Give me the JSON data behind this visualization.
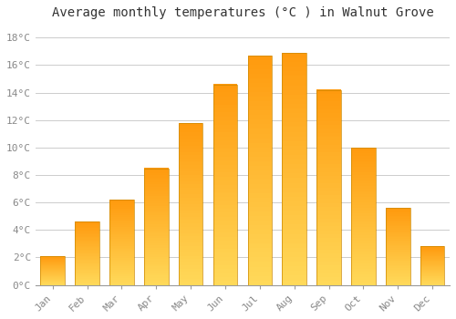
{
  "title": "Average monthly temperatures (°C ) in Walnut Grove",
  "months": [
    "Jan",
    "Feb",
    "Mar",
    "Apr",
    "May",
    "Jun",
    "Jul",
    "Aug",
    "Sep",
    "Oct",
    "Nov",
    "Dec"
  ],
  "values": [
    2.1,
    4.6,
    6.2,
    8.5,
    11.8,
    14.6,
    16.7,
    16.9,
    14.2,
    10.0,
    5.6,
    2.8
  ],
  "bar_color_main": "#FFA500",
  "bar_color_light": "#FFD070",
  "bar_edge_color": "#CC8800",
  "background_color": "#FFFFFF",
  "grid_color": "#CCCCCC",
  "ytick_labels": [
    "0°C",
    "2°C",
    "4°C",
    "6°C",
    "8°C",
    "10°C",
    "12°C",
    "14°C",
    "16°C",
    "18°C"
  ],
  "ytick_values": [
    0,
    2,
    4,
    6,
    8,
    10,
    12,
    14,
    16,
    18
  ],
  "ylim": [
    0,
    19
  ],
  "title_fontsize": 10,
  "tick_fontsize": 8,
  "tick_font_color": "#888888",
  "title_font_color": "#333333"
}
